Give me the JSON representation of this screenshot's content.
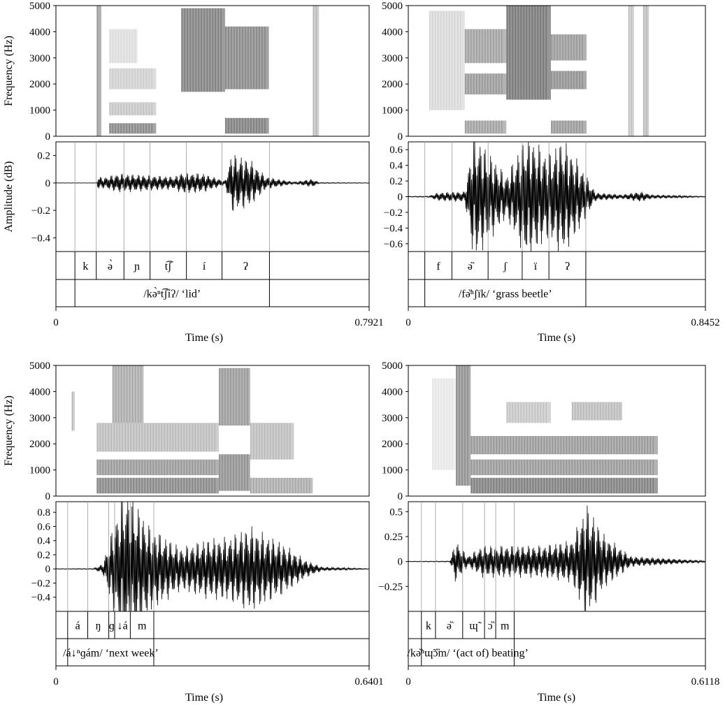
{
  "chart_data": [
    {
      "type": "spectrogram+waveform",
      "spectrogram": {
        "ylabel": "Frequency (Hz)",
        "ylim": [
          0,
          5000
        ],
        "yticks": [
          "0",
          "1000",
          "2000",
          "3000",
          "4000",
          "5000"
        ]
      },
      "waveform": {
        "ylabel": "Amplitude (dB)",
        "ylim": [
          -0.5,
          0.3
        ],
        "yticks": [
          "−0.4",
          "−0.2",
          "0",
          "0.2"
        ]
      },
      "xlabel": "Time (s)",
      "x_start_label": "0",
      "x_end_label": "0.7921",
      "duration": 0.7921,
      "segments": [
        {
          "label": "k",
          "start": 0.048,
          "end": 0.102
        },
        {
          "label": "ə̀",
          "start": 0.102,
          "end": 0.172
        },
        {
          "label": "ɲ",
          "start": 0.172,
          "end": 0.238
        },
        {
          "label": "t͡ʃ",
          "start": 0.238,
          "end": 0.33
        },
        {
          "label": "í",
          "start": 0.33,
          "end": 0.42
        },
        {
          "label": "ʔ",
          "start": 0.42,
          "end": 0.54
        }
      ],
      "word": {
        "label": "/kə̀ⁿt͡ʃíʔ/ ‘lid’",
        "start": 0.048,
        "end": 0.54
      }
    },
    {
      "type": "spectrogram+waveform",
      "spectrogram": {
        "ylabel": "",
        "ylim": [
          0,
          5000
        ],
        "yticks": [
          "0",
          "1000",
          "2000",
          "3000",
          "4000",
          "5000"
        ]
      },
      "waveform": {
        "ylabel": "",
        "ylim": [
          -0.7,
          0.7
        ],
        "yticks": [
          "−0.6",
          "−0.4",
          "−0.2",
          "0",
          "0.2",
          "0.4",
          "0.6"
        ]
      },
      "xlabel": "Time (s)",
      "x_start_label": "0",
      "x_end_label": "0.8452",
      "duration": 0.8452,
      "segments": [
        {
          "label": "f",
          "start": 0.047,
          "end": 0.124
        },
        {
          "label": "ə̏",
          "start": 0.124,
          "end": 0.227
        },
        {
          "label": "ʃ",
          "start": 0.227,
          "end": 0.324
        },
        {
          "label": "ï",
          "start": 0.324,
          "end": 0.4
        },
        {
          "label": "ʔ",
          "start": 0.4,
          "end": 0.505
        }
      ],
      "word": {
        "label": "/fə̏ⁿʃïk/ ‘grass beetle’",
        "start": 0.047,
        "end": 0.505
      }
    },
    {
      "type": "spectrogram+waveform",
      "spectrogram": {
        "ylabel": "Frequency (Hz)",
        "ylim": [
          0,
          5000
        ],
        "yticks": [
          "0",
          "1000",
          "2000",
          "3000",
          "4000",
          "5000"
        ]
      },
      "waveform": {
        "ylabel": "",
        "ylim": [
          -0.6,
          0.95
        ],
        "yticks": [
          "−0.4",
          "−0.2",
          "0",
          "0.2",
          "0.4",
          "0.6",
          "0.8"
        ]
      },
      "xlabel": "Time (s)",
      "x_start_label": "0",
      "x_end_label": "0.6401",
      "duration": 0.6401,
      "segments": [
        {
          "label": "á",
          "start": 0.024,
          "end": 0.065
        },
        {
          "label": "ŋ",
          "start": 0.065,
          "end": 0.108
        },
        {
          "label": "ɡ",
          "start": 0.108,
          "end": 0.12
        },
        {
          "label": "↓á",
          "start": 0.12,
          "end": 0.152
        },
        {
          "label": "m",
          "start": 0.152,
          "end": 0.2
        }
      ],
      "word": {
        "label": "/á↓ⁿɡám/ ‘next week’",
        "start": 0.024,
        "end": 0.2
      }
    },
    {
      "type": "spectrogram+waveform",
      "spectrogram": {
        "ylabel": "",
        "ylim": [
          0,
          5000
        ],
        "yticks": [
          "0",
          "1000",
          "2000",
          "3000",
          "4000",
          "5000"
        ]
      },
      "waveform": {
        "ylabel": "",
        "ylim": [
          -0.5,
          0.6
        ],
        "yticks": [
          "−0.25",
          "0",
          "0.25",
          "0.5"
        ]
      },
      "xlabel": "Time (s)",
      "x_start_label": "0",
      "x_end_label": "0.6118",
      "duration": 0.6118,
      "segments": [
        {
          "label": "k",
          "start": 0.027,
          "end": 0.056
        },
        {
          "label": "ə̏",
          "start": 0.056,
          "end": 0.112
        },
        {
          "label": "ɰ̃",
          "start": 0.112,
          "end": 0.157
        },
        {
          "label": "ɔ̏",
          "start": 0.157,
          "end": 0.18
        },
        {
          "label": "m",
          "start": 0.18,
          "end": 0.218
        }
      ],
      "word": {
        "label": "/kə̏ⁿɰ̃ɔ̏m/ ‘(act of) beating’",
        "start": 0.027,
        "end": 0.218
      }
    }
  ]
}
